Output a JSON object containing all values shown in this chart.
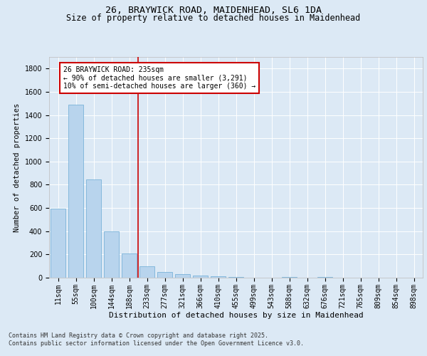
{
  "title_line1": "26, BRAYWICK ROAD, MAIDENHEAD, SL6 1DA",
  "title_line2": "Size of property relative to detached houses in Maidenhead",
  "xlabel": "Distribution of detached houses by size in Maidenhead",
  "ylabel": "Number of detached properties",
  "categories": [
    "11sqm",
    "55sqm",
    "100sqm",
    "144sqm",
    "188sqm",
    "233sqm",
    "277sqm",
    "321sqm",
    "366sqm",
    "410sqm",
    "455sqm",
    "499sqm",
    "543sqm",
    "588sqm",
    "632sqm",
    "676sqm",
    "721sqm",
    "765sqm",
    "809sqm",
    "854sqm",
    "898sqm"
  ],
  "values": [
    595,
    1490,
    845,
    400,
    210,
    100,
    50,
    30,
    20,
    15,
    5,
    0,
    0,
    5,
    0,
    5,
    0,
    0,
    0,
    0,
    0
  ],
  "bar_color": "#b8d4ed",
  "bar_edge_color": "#6aaad4",
  "vline_index": 4.5,
  "vline_color": "#cc0000",
  "annotation_line1": "26 BRAYWICK ROAD: 235sqm",
  "annotation_line2": "← 90% of detached houses are smaller (3,291)",
  "annotation_line3": "10% of semi-detached houses are larger (360) →",
  "annotation_box_color": "#cc0000",
  "ylim": [
    0,
    1900
  ],
  "yticks": [
    0,
    200,
    400,
    600,
    800,
    1000,
    1200,
    1400,
    1600,
    1800
  ],
  "background_color": "#dce9f5",
  "plot_bg_color": "#dce9f5",
  "footer_text": "Contains HM Land Registry data © Crown copyright and database right 2025.\nContains public sector information licensed under the Open Government Licence v3.0.",
  "title_fontsize": 9.5,
  "subtitle_fontsize": 8.5,
  "xlabel_fontsize": 8,
  "ylabel_fontsize": 7.5,
  "tick_fontsize": 7,
  "annotation_fontsize": 7,
  "footer_fontsize": 6
}
